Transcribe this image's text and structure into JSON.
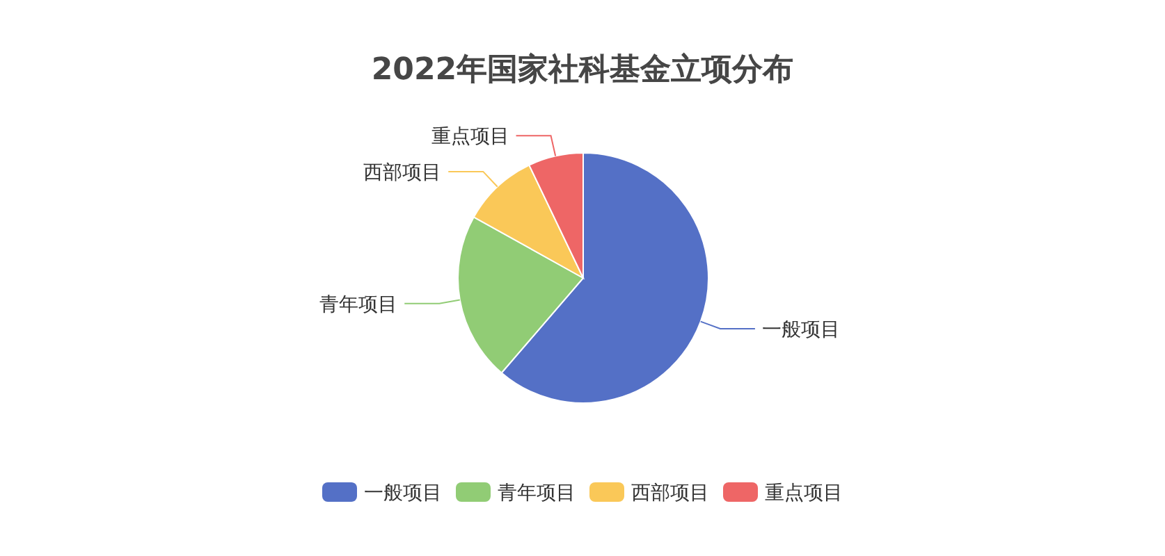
{
  "chart_data": {
    "type": "pie",
    "title": "2022年国家社科基金立项分布",
    "categories": [
      "一般项目",
      "青年项目",
      "西部项目",
      "重点项目"
    ],
    "values": [
      61.3,
      21.8,
      9.8,
      7.1
    ],
    "colors": [
      "#5470c6",
      "#91cc75",
      "#fac858",
      "#ee6666"
    ],
    "legend": "bottom"
  }
}
